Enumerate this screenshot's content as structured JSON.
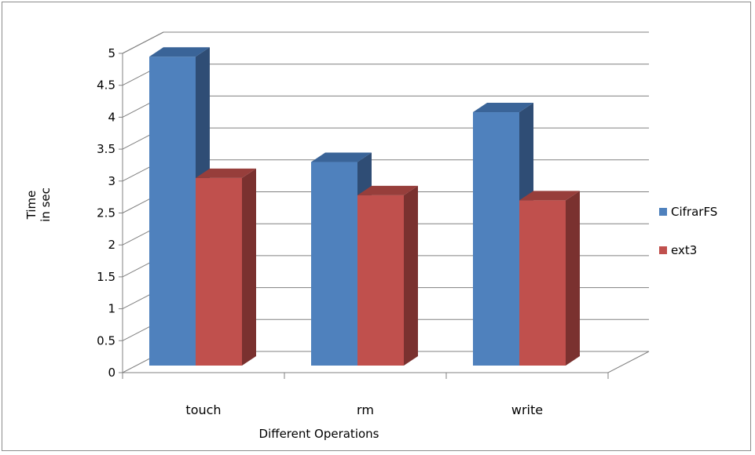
{
  "chart_data": {
    "type": "bar",
    "categories": [
      "touch",
      "rm",
      "write"
    ],
    "series": [
      {
        "name": "CifrarFS",
        "values": [
          4.85,
          3.2,
          3.98
        ],
        "color": "#4f81bd",
        "side_color": "#2f4d75",
        "top_color": "#3a6498"
      },
      {
        "name": "ext3",
        "values": [
          2.95,
          2.68,
          2.6
        ],
        "color": "#c0504d",
        "side_color": "#7a312f",
        "top_color": "#973e3b"
      }
    ],
    "title": "",
    "xlabel": "Different Operations",
    "ylabel_lines": [
      "Time",
      "in sec"
    ],
    "ylim": [
      0,
      5
    ],
    "yticks": [
      "0",
      "0.5",
      "1",
      "1.5",
      "2",
      "2.5",
      "3",
      "3.5",
      "4",
      "4.5",
      "5"
    ],
    "grid": true,
    "legend_position": "right",
    "style": "3d-clustered-column"
  }
}
